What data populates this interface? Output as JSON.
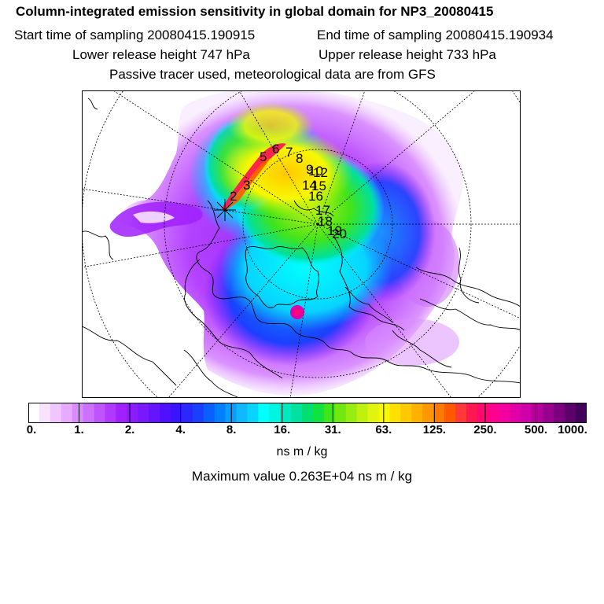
{
  "header": {
    "title": "Column-integrated emission sensitivity in global domain for NP3_20080415",
    "start_time": "Start time of sampling 20080415.190915",
    "end_time": "End time of sampling 20080415.190934",
    "lower_height": "Lower release height  747 hPa",
    "upper_height": "Upper release height  733 hPa",
    "tracer_note": "Passive tracer used, meteorological data are from GFS"
  },
  "chart_data": {
    "type": "heatmap",
    "projection": "polar stereographic map, northern hemisphere",
    "title": "Column-integrated emission sensitivity in global domain for NP3_20080415",
    "colorbar": {
      "tick_labels": [
        "0.",
        "1.",
        "2.",
        "4.",
        "8.",
        "16.",
        "31.",
        "63.",
        "125.",
        "250.",
        "500.",
        "1000."
      ],
      "units": "ns m / kg"
    },
    "max_value": "Maximum value  0.263E+04 ns m / kg",
    "trajectory_labels": [
      "2",
      "3",
      "5",
      "6",
      "7",
      "8",
      "9",
      "10",
      "12",
      "14",
      "15",
      "16",
      "17",
      "18",
      "19",
      "20"
    ]
  },
  "colors": {
    "colorbar": [
      "#ffffff",
      "#f7e3ff",
      "#efc6ff",
      "#e6aaff",
      "#d98cff",
      "#cc70ff",
      "#bf54ff",
      "#b038ff",
      "#a020ff",
      "#8c1cff",
      "#7818ff",
      "#6414ff",
      "#4f10ff",
      "#3b14ff",
      "#2828ff",
      "#1a40ff",
      "#0a60ff",
      "#0080ff",
      "#0a9cff",
      "#10b8ff",
      "#08d4ff",
      "#00ffff",
      "#00f4df",
      "#00eabf",
      "#00e09f",
      "#00df6f",
      "#10e23f",
      "#40e41a",
      "#70e810",
      "#98ec10",
      "#c0f010",
      "#e0f410",
      "#f8f800",
      "#ffe000",
      "#ffc800",
      "#ffb000",
      "#ff9800",
      "#ff7800",
      "#ff5800",
      "#ff3838",
      "#ff1850",
      "#ff0870",
      "#ff0090",
      "#f400a0",
      "#e000a8",
      "#cc00a6",
      "#b4009c",
      "#9a0090",
      "#7a0080",
      "#5c006c",
      "#42005a"
    ],
    "land_outline": "#000000"
  }
}
